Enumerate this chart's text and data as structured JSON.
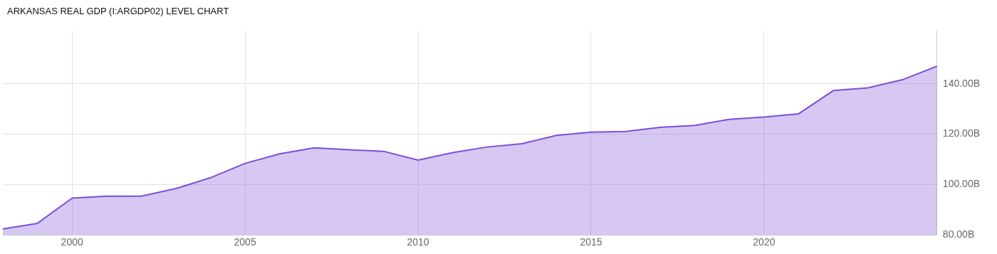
{
  "chart_data": {
    "type": "area",
    "title": "ARKANSAS REAL GDP (I:ARGDP02) LEVEL CHART",
    "x": [
      1998,
      1999,
      2000,
      2001,
      2002,
      2003,
      2004,
      2005,
      2006,
      2007,
      2008,
      2009,
      2010,
      2011,
      2012,
      2013,
      2014,
      2015,
      2016,
      2017,
      2018,
      2019,
      2020,
      2021,
      2022,
      2023,
      2024,
      2025
    ],
    "series": [
      {
        "color": "#7b4fd8",
        "values": [
          82.4,
          84.6,
          94.6,
          95.4,
          95.4,
          98.4,
          102.7,
          108.4,
          112.2,
          114.6,
          113.8,
          113.2,
          109.7,
          112.7,
          114.9,
          116.2,
          119.5,
          120.8,
          121.1,
          122.7,
          123.5,
          125.9,
          126.8,
          128.1,
          137.3,
          138.4,
          141.6,
          147.0
        ]
      }
    ],
    "xlim": [
      1998,
      2025
    ],
    "xticks": [
      2000,
      2005,
      2010,
      2015,
      2020
    ],
    "ylim": [
      80,
      161
    ],
    "yticks": [
      {
        "value": 80,
        "label": "80.00B"
      },
      {
        "value": 100,
        "label": "100.00B"
      },
      {
        "value": 120,
        "label": "120.00B"
      },
      {
        "value": 140,
        "label": "140.00B"
      }
    ],
    "grid": true,
    "legend": false,
    "marker": "none",
    "line_style": "solid"
  }
}
